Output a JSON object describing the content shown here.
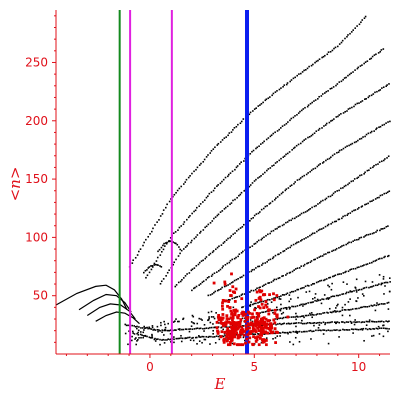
{
  "chart_data": {
    "type": "scatter",
    "title": "",
    "xlabel": "E",
    "ylabel": "<n>",
    "xlim": [
      -4.5,
      11.5
    ],
    "ylim": [
      0,
      295
    ],
    "grid": false,
    "xticks": [
      0,
      5,
      10
    ],
    "yticks": [
      50,
      100,
      150,
      200,
      250
    ],
    "colors": {
      "axes": "#e0101a",
      "points": "#000000",
      "highlight": "#e00000"
    },
    "vertical_lines": [
      {
        "x": -1.45,
        "color": "#138a1e",
        "width": 2
      },
      {
        "x": -0.95,
        "color": "#e020e0",
        "width": 2
      },
      {
        "x": 1.05,
        "color": "#e020e0",
        "width": 2
      },
      {
        "x": 4.65,
        "color": "#0a1ef0",
        "width": 4
      }
    ],
    "curves": [
      {
        "x": [
          -4.5,
          -3.5,
          -2.6,
          -2.1,
          -1.7,
          -1.35,
          -1.1
        ],
        "y": [
          42,
          52,
          58,
          59,
          55,
          47,
          38
        ]
      },
      {
        "x": [
          -3.4,
          -2.7,
          -2.1,
          -1.6,
          -1.2,
          -0.9
        ],
        "y": [
          38,
          46,
          51,
          50,
          44,
          36
        ]
      },
      {
        "x": [
          -3.0,
          -2.4,
          -1.9,
          -1.4,
          -1.0,
          -0.7
        ],
        "y": [
          33,
          40,
          43,
          42,
          37,
          30
        ]
      },
      {
        "x": [
          -2.6,
          -2.1,
          -1.6,
          -1.2,
          -0.8,
          -0.5
        ],
        "y": [
          28,
          33,
          36,
          35,
          31,
          26
        ]
      }
    ],
    "ladder_series": {
      "bands": [
        {
          "x": [
            -0.95,
            1.0,
            3.0,
            5.0,
            7.0,
            9.0,
            10.4
          ],
          "y": [
            75,
            133,
            175,
            210,
            238,
            264,
            290
          ]
        },
        {
          "x": [
            -0.2,
            1.0,
            3.0,
            5.0,
            7.0,
            9.0,
            11.2
          ],
          "y": [
            65,
            100,
            140,
            175,
            205,
            232,
            262
          ]
        },
        {
          "x": [
            0.5,
            1.5,
            3.0,
            5.0,
            7.0,
            9.0,
            11.5
          ],
          "y": [
            60,
            88,
            115,
            148,
            178,
            204,
            232
          ]
        },
        {
          "x": [
            1.2,
            2.0,
            3.5,
            5.0,
            7.0,
            9.0,
            11.5
          ],
          "y": [
            58,
            72,
            95,
            118,
            148,
            173,
            200
          ]
        },
        {
          "x": [
            2.0,
            3.0,
            4.5,
            6.0,
            8.0,
            10.0,
            11.5
          ],
          "y": [
            55,
            68,
            88,
            107,
            128,
            152,
            170
          ]
        },
        {
          "x": [
            2.8,
            4.0,
            5.5,
            7.0,
            8.5,
            10.0,
            11.5
          ],
          "y": [
            50,
            62,
            78,
            95,
            110,
            125,
            140
          ]
        },
        {
          "x": [
            3.6,
            5.0,
            6.5,
            8.0,
            9.5,
            11.5
          ],
          "y": [
            45,
            55,
            68,
            82,
            95,
            110
          ]
        },
        {
          "x": [
            4.4,
            6.0,
            7.5,
            9.0,
            10.5,
            11.5
          ],
          "y": [
            40,
            48,
            58,
            68,
            78,
            85
          ]
        },
        {
          "x": [
            5.2,
            7.0,
            8.5,
            10.0,
            11.5
          ],
          "y": [
            35,
            41,
            48,
            55,
            62
          ]
        },
        {
          "x": [
            6.0,
            8.0,
            9.5,
            11.5
          ],
          "y": [
            30,
            34,
            38,
            44
          ]
        },
        {
          "x": [
            -1.2,
            0.5,
            2.5,
            4.5,
            6.5,
            8.5,
            11.5
          ],
          "y": [
            25,
            20,
            22,
            24,
            26,
            27,
            28
          ]
        },
        {
          "x": [
            -0.8,
            0.5,
            2.0,
            4.0,
            6.0,
            8.0,
            11.5
          ],
          "y": [
            18,
            12,
            14,
            16,
            18,
            20,
            22
          ]
        }
      ],
      "bumps": [
        {
          "x": [
            0.4,
            0.7,
            1.0,
            1.3,
            1.5
          ],
          "y": [
            88,
            95,
            97,
            94,
            88
          ]
        },
        {
          "x": [
            -0.3,
            0.0,
            0.3,
            0.6
          ],
          "y": [
            70,
            75,
            77,
            74
          ]
        }
      ]
    },
    "highlight_clusters": [
      {
        "cx": 3.9,
        "cy": 22,
        "sx": 0.35,
        "sy": 8,
        "n": 140
      },
      {
        "cx": 5.2,
        "cy": 24,
        "sx": 0.45,
        "sy": 8,
        "n": 160
      },
      {
        "cx": 3.8,
        "cy": 48,
        "sx": 0.25,
        "sy": 10,
        "n": 25
      },
      {
        "cx": 5.4,
        "cy": 45,
        "sx": 0.3,
        "sy": 10,
        "n": 25
      }
    ]
  }
}
